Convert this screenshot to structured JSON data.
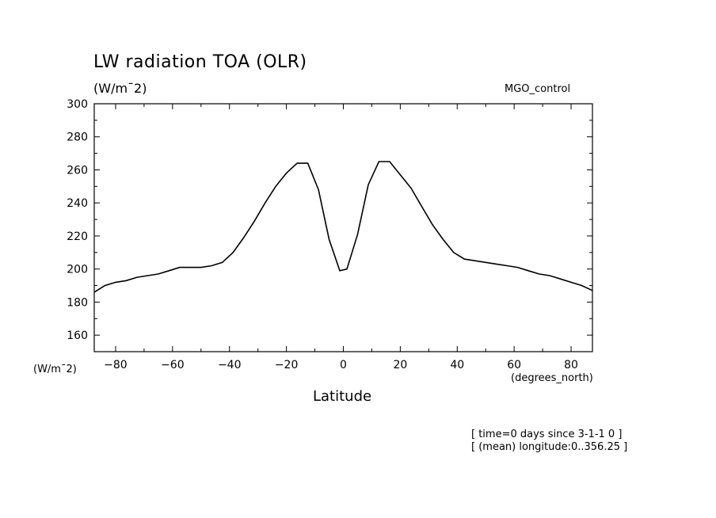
{
  "labels": {
    "title": "LW radiation TOA (OLR)",
    "units": "(W/m¯2)",
    "case": "MGO_control",
    "yunits": "(W/m¯2)",
    "xunits": "(degrees_north)",
    "xlabel": "Latitude",
    "note1": "[ time=0 days since 3-1-1 0 ]",
    "note2": "[ (mean) longitude:0..356.25 ]"
  },
  "chart_data": {
    "type": "line",
    "title": "LW radiation TOA (OLR)",
    "xlabel": "Latitude",
    "ylabel": "(W/m¯2)",
    "xlim": [
      -87.5,
      87.5
    ],
    "ylim": [
      150,
      300
    ],
    "xticks": [
      -80,
      -60,
      -40,
      -20,
      0,
      20,
      40,
      60,
      80
    ],
    "yticks": [
      160,
      180,
      200,
      220,
      240,
      260,
      280,
      300
    ],
    "grid": false,
    "series": [
      {
        "x": [
          -87.5,
          -83.75,
          -80,
          -76.25,
          -72.5,
          -68.75,
          -65,
          -61.25,
          -57.5,
          -53.75,
          -50,
          -46.25,
          -42.5,
          -38.75,
          -35,
          -31.25,
          -27.5,
          -23.75,
          -20,
          -16.25,
          -12.5,
          -8.75,
          -5,
          -1.25,
          1.25,
          5,
          8.75,
          12.5,
          16.25,
          20,
          23.75,
          27.5,
          31.25,
          35,
          38.75,
          42.5,
          46.25,
          50,
          53.75,
          57.5,
          61.25,
          65,
          68.75,
          72.5,
          76.25,
          80,
          83.75,
          87.5
        ],
        "y": [
          186,
          190,
          192,
          193,
          195,
          196,
          197,
          199,
          201,
          201,
          201,
          202,
          204,
          210,
          219,
          229,
          240,
          250,
          258,
          264,
          264,
          248,
          218,
          199,
          200,
          221,
          251,
          265,
          265,
          257,
          249,
          238,
          227,
          218,
          210,
          206,
          205,
          204,
          203,
          202,
          201,
          199,
          197,
          196,
          194,
          192,
          190,
          187
        ]
      }
    ]
  }
}
